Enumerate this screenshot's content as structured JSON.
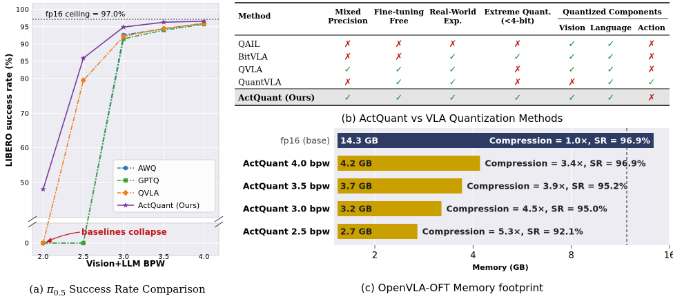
{
  "panel_a": {
    "caption_prefix": "(a) ",
    "caption_suffix": " Success Rate Comparison",
    "pi_symbol": "π",
    "pi_subscript": "0.5",
    "ceiling_label": "fp16 ceiling = 97.0%",
    "annotation": "baselines collapse"
  },
  "panel_b": {
    "caption": "(b) ActQuant vs VLA Quantization Methods",
    "headers": {
      "method": "Method",
      "mixed": [
        "Mixed",
        "Precision"
      ],
      "finetune": [
        "Fine-tuning",
        "Free"
      ],
      "realworld": [
        "Real-World",
        "Exp."
      ],
      "extreme": [
        "Extreme Quant.",
        "(<4-bit)"
      ],
      "quantized": "Quantized Components",
      "vision": "Vision",
      "language": "Language",
      "action": "Action"
    },
    "check_symbol": "✓",
    "cross_symbol": "✗",
    "rows": [
      {
        "method": "QAIL",
        "values": [
          false,
          false,
          false,
          false,
          true,
          true,
          false
        ]
      },
      {
        "method": "BitVLA",
        "values": [
          false,
          false,
          true,
          true,
          true,
          true,
          false
        ]
      },
      {
        "method": "QVLA",
        "values": [
          true,
          true,
          true,
          false,
          true,
          true,
          false
        ]
      },
      {
        "method": "QuantVLA",
        "values": [
          false,
          true,
          true,
          false,
          false,
          true,
          true
        ]
      }
    ],
    "highlight_row": {
      "method": "ActQuant (Ours)",
      "values": [
        true,
        true,
        true,
        true,
        true,
        true,
        false
      ]
    },
    "colors": {
      "check": "#1e8a2e",
      "cross": "#c0191c",
      "highlight_bg": "#e4e4e4"
    }
  },
  "panel_c": {
    "caption": "(c) OpenVLA-OFT Memory footprint"
  },
  "chart_data": [
    {
      "type": "line",
      "title": "",
      "xlabel": "Vision+LLM BPW",
      "ylabel": "LIBERO success rate (%)",
      "xlim": [
        1.9,
        4.1
      ],
      "x_ticks": [
        "2.0",
        "2.5",
        "3.0",
        "3.5",
        "4.0"
      ],
      "y_ticks": [
        "0",
        "50",
        "60",
        "70",
        "80",
        "85",
        "90",
        "95",
        "100"
      ],
      "broken_y_axis": true,
      "grid": true,
      "legend_position": "lower right",
      "reference_line": {
        "label": "fp16 ceiling = 97.0%",
        "y": 97.0
      },
      "x": [
        2.0,
        2.5,
        3.0,
        3.5,
        4.0
      ],
      "series": [
        {
          "name": "AWQ",
          "color": "#2a7ab8",
          "marker": "circle",
          "dash": "dashdot",
          "values": [
            0,
            0,
            92.6,
            94.4,
            96.0
          ]
        },
        {
          "name": "GPTQ",
          "color": "#3aa23a",
          "marker": "square",
          "dash": "dashdot",
          "values": [
            0,
            0,
            91.5,
            94.0,
            95.7
          ]
        },
        {
          "name": "QVLA",
          "color": "#f07f18",
          "marker": "diamond",
          "dash": "dashdot",
          "values": [
            0,
            79.5,
            92.2,
            94.5,
            95.9
          ]
        },
        {
          "name": "ActQuant (Ours)",
          "color": "#7b3d9c",
          "marker": "star",
          "dash": "solid",
          "values": [
            48.0,
            85.9,
            94.9,
            96.3,
            96.6
          ]
        }
      ]
    },
    {
      "type": "bar",
      "orientation": "horizontal",
      "title": "",
      "xlabel": "Memory (GB)",
      "x_ticks": [
        "2",
        "4",
        "8",
        "16"
      ],
      "x_scale": "log2",
      "xlim": [
        1.5,
        16
      ],
      "reference_line": {
        "x": 14.3
      },
      "categories": [
        "fp16 (base)",
        "ActQuant 4.0 bpw",
        "ActQuant 3.5 bpw",
        "ActQuant 3.0 bpw",
        "ActQuant 2.5 bpw"
      ],
      "values": [
        14.3,
        4.2,
        3.7,
        3.2,
        2.7
      ],
      "value_labels": [
        "14.3 GB",
        "4.2 GB",
        "3.7 GB",
        "3.2 GB",
        "2.7 GB"
      ],
      "annotations": [
        "Compression = 1.0×, SR = 96.9%",
        "Compression = 3.4×, SR = 96.9%",
        "Compression = 3.9×, SR = 95.2%",
        "Compression = 4.5×, SR = 95.0%",
        "Compression = 5.3×, SR = 92.1%"
      ],
      "colors": [
        "#2e3c64",
        "#c9a000",
        "#c9a000",
        "#c9a000",
        "#c9a000"
      ]
    }
  ]
}
